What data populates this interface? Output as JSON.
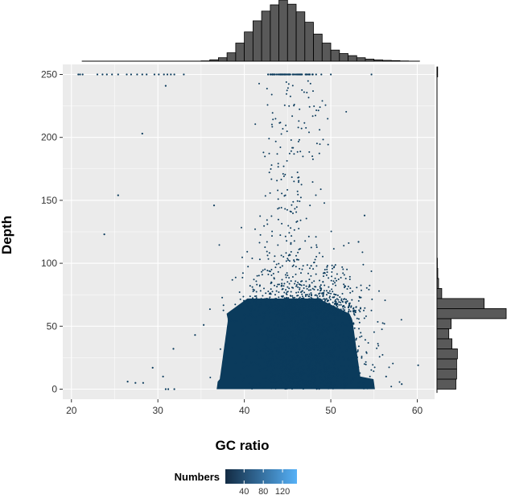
{
  "chart_data": {
    "type": "scatter",
    "title": "",
    "xlabel": "GC ratio",
    "ylabel": "Depth",
    "xlim": [
      19,
      62
    ],
    "ylim": [
      -8,
      258
    ],
    "x_ticks": [
      20,
      30,
      40,
      50,
      60
    ],
    "y_ticks": [
      0,
      50,
      100,
      150,
      200,
      250
    ],
    "grid": true,
    "panel_background": "#ebebeb",
    "point_color": "#0b3b5c",
    "legend": {
      "title": "Numbers",
      "placement": "bottom",
      "ticks": [
        40,
        80,
        120
      ],
      "range": [
        1,
        150
      ],
      "color_low": "#132b43",
      "color_high": "#56b1f7"
    },
    "dense_region": {
      "description_points": "core cloud of points",
      "x_range": [
        38,
        56
      ],
      "y_range": [
        0,
        70
      ]
    },
    "capped_points_y250_x": [
      20.8,
      21.0,
      21.3,
      23.0,
      23.6,
      24.1,
      24.7,
      25.4,
      26.4,
      26.9,
      27.6,
      28.2,
      28.7,
      29.6,
      30.1,
      30.7,
      31.1,
      31.5,
      31.9,
      33.0,
      47.5,
      48.3,
      48.9,
      50.0,
      54.7
    ],
    "outlier_points": [
      {
        "x": 23.8,
        "y": 123
      },
      {
        "x": 25.4,
        "y": 154
      },
      {
        "x": 28.2,
        "y": 203
      },
      {
        "x": 30.9,
        "y": 241
      },
      {
        "x": 29.4,
        "y": 17
      },
      {
        "x": 30.6,
        "y": 10
      },
      {
        "x": 31.8,
        "y": 32
      },
      {
        "x": 26.5,
        "y": 6
      },
      {
        "x": 27.4,
        "y": 5
      },
      {
        "x": 28.3,
        "y": 5
      },
      {
        "x": 31.2,
        "y": 0
      },
      {
        "x": 31.9,
        "y": 0
      },
      {
        "x": 30.9,
        "y": 0
      },
      {
        "x": 36.5,
        "y": 146
      },
      {
        "x": 34.3,
        "y": 43
      },
      {
        "x": 35.3,
        "y": 51
      },
      {
        "x": 56.4,
        "y": 10
      },
      {
        "x": 58.2,
        "y": 4
      },
      {
        "x": 60.1,
        "y": 19
      },
      {
        "x": 53.9,
        "y": 138
      },
      {
        "x": 53.2,
        "y": 117
      }
    ],
    "marginal_x_histogram": {
      "bin_start": 20,
      "bin_width": 1,
      "counts": [
        0,
        0,
        0,
        0,
        0,
        0,
        0,
        0,
        0,
        0,
        0,
        0,
        0,
        0,
        0,
        0.05,
        0.2,
        0.5,
        1.2,
        2.6,
        4.2,
        5.8,
        7.2,
        8.1,
        8.8,
        8.2,
        7.1,
        5.6,
        3.9,
        2.6,
        1.6,
        1.1,
        0.8,
        0.5,
        0.3,
        0.18,
        0.12,
        0.08,
        0.04,
        0.02,
        0.01
      ]
    },
    "marginal_y_histogram": {
      "bin_start": 0,
      "bin_width": 8,
      "counts": [
        24,
        25,
        25,
        26,
        19,
        15,
        18,
        88,
        60,
        6,
        2,
        1,
        0.5,
        0.4,
        0.3,
        0.2,
        0.2,
        0.15,
        0.1,
        0.1,
        0.08,
        0.08,
        0.07,
        0.06,
        0.05,
        0.05,
        0.05,
        0.05,
        0.05,
        0.05,
        0.3,
        0.8
      ]
    }
  }
}
